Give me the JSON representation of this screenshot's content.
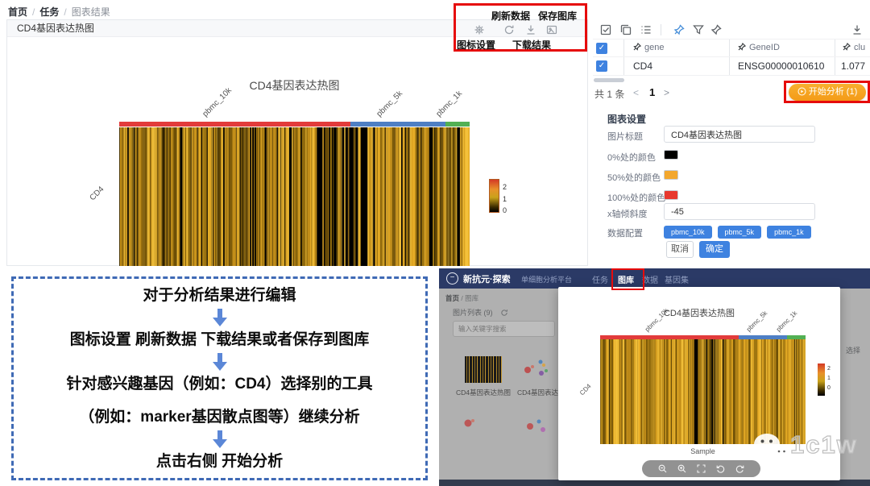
{
  "breadcrumb": {
    "separator": "/",
    "items": [
      "首页",
      "任务",
      "图表结果"
    ]
  },
  "chart_panel": {
    "header_title": "CD4基因表达热图",
    "annotations": {
      "refresh": "刷新数据",
      "save_gallery": "保存图库",
      "settings": "图标设置",
      "download": "下载结果"
    }
  },
  "chart_data": {
    "type": "heatmap",
    "title": "CD4基因表达热图",
    "rows": [
      "CD4"
    ],
    "xlabel": "Sample",
    "column_groups": [
      {
        "name": "pbmc_10k",
        "color": "#e23b3b",
        "fraction": 0.66
      },
      {
        "name": "pbmc_5k",
        "color": "#4e7fc4",
        "fraction": 0.27
      },
      {
        "name": "pbmc_1k",
        "color": "#52b054",
        "fraction": 0.07
      }
    ],
    "colorbar": {
      "min": 0,
      "max": 2,
      "tick_labels": [
        "2",
        "1",
        "0"
      ],
      "gradient": [
        "#e8382e",
        "#f3a72e",
        "#000000"
      ]
    },
    "cell_palette": [
      "#6b4e06",
      "#9a7210",
      "#c5901a",
      "#e8ad26",
      "#f4c13a"
    ],
    "note": "single-row heatmap of CD4 expression per cell; black=0, orange=1, red=2"
  },
  "right_panel": {
    "icons": [
      "select-all",
      "copy",
      "list-settings",
      "pin",
      "filter",
      "dart",
      "download"
    ],
    "table": {
      "headers": [
        "gene",
        "GeneID",
        "clu"
      ],
      "row": {
        "selected": true,
        "gene": "CD4",
        "gene_id": "ENSG00000010610",
        "value": "1.077"
      }
    },
    "pagination": {
      "total": "共 1 条",
      "prev": "<",
      "page": "1",
      "next": ">"
    },
    "start_button": "开始分析 (1)",
    "settings": {
      "section_title": "图表设置",
      "title_label": "图片标题",
      "title_value": "CD4基因表达热图",
      "color0_label": "0%处的颜色",
      "color0": "#000000",
      "color50_label": "50%处的颜色",
      "color50": "#f3a72e",
      "color100_label": "100%处的颜色",
      "color100": "#e8382e",
      "tilt_label": "x轴倾斜度",
      "tilt_value": "-45",
      "data_label": "数据配置",
      "chips": [
        "pbmc_10k",
        "pbmc_5k",
        "pbmc_1k"
      ],
      "cancel": "取消",
      "confirm": "确定"
    }
  },
  "callout": {
    "lines": [
      "对于分析结果进行编辑",
      "图标设置 刷新数据 下载结果或者保存到图库",
      "针对感兴趣基因（例如：CD4）选择别的工具",
      "（例如：marker基因散点图等）继续分析",
      "点击右侧 开始分析"
    ]
  },
  "mini_app": {
    "header": {
      "brand": "新抗元·探索",
      "subtitle": "单细胞分析平台",
      "nav": [
        "任务",
        "图库",
        "数据",
        "基因集"
      ]
    },
    "gallery": {
      "breadcrumb": [
        "首页",
        "图库"
      ],
      "separator": "/",
      "list_title": "图片列表 (9)",
      "search_placeholder": "输入关键字搜索",
      "thumb_labels": [
        "CD4基因表达热图",
        "CD4基因表达热图"
      ],
      "side_text": "选择"
    },
    "watermark": "1c1w"
  }
}
